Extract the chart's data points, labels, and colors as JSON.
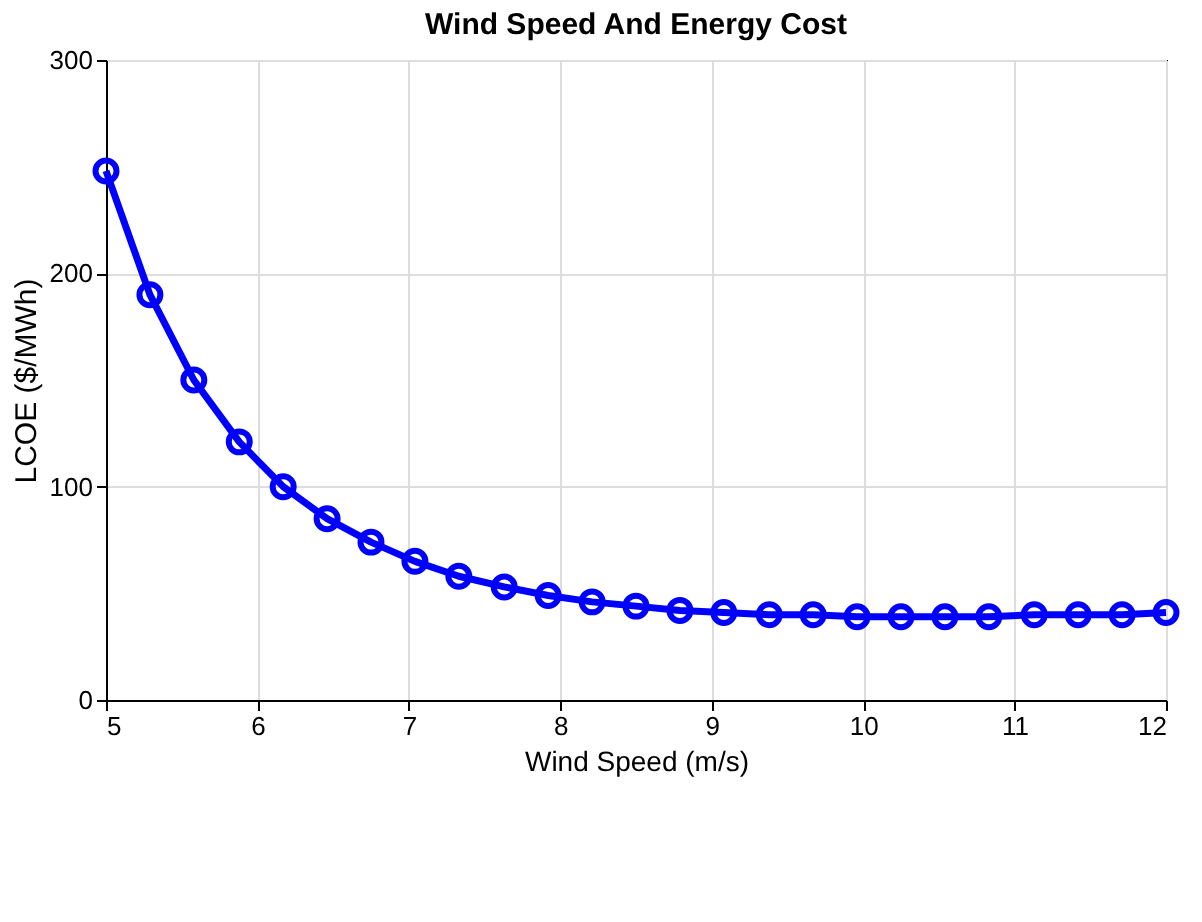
{
  "chart_data": {
    "type": "line",
    "title": "Wind Speed And Energy Cost",
    "xlabel": "Wind Speed (m/s)",
    "ylabel": "LCOE ($/MWh)",
    "x": [
      5,
      5.29,
      5.58,
      5.88,
      6.17,
      6.46,
      6.75,
      7.04,
      7.33,
      7.63,
      7.92,
      8.21,
      8.5,
      8.79,
      9.08,
      9.38,
      9.67,
      9.96,
      10.25,
      10.54,
      10.83,
      11.13,
      11.42,
      11.71,
      12
    ],
    "series": [
      {
        "color": "#0000ff",
        "values": [
          248,
          190,
          150,
          121,
          100,
          85,
          74,
          65,
          58,
          53,
          49,
          46,
          44,
          42,
          41,
          40,
          40,
          39,
          39,
          39,
          39,
          40,
          40,
          40,
          41
        ]
      }
    ],
    "xlim": [
      5,
      12
    ],
    "xticks": [
      5,
      6,
      7,
      8,
      9,
      10,
      11,
      12
    ],
    "ylim": [
      0,
      300
    ],
    "yticks": [
      0,
      100,
      200,
      300
    ],
    "grid": true,
    "marker": "circle",
    "line_style": "solid"
  }
}
